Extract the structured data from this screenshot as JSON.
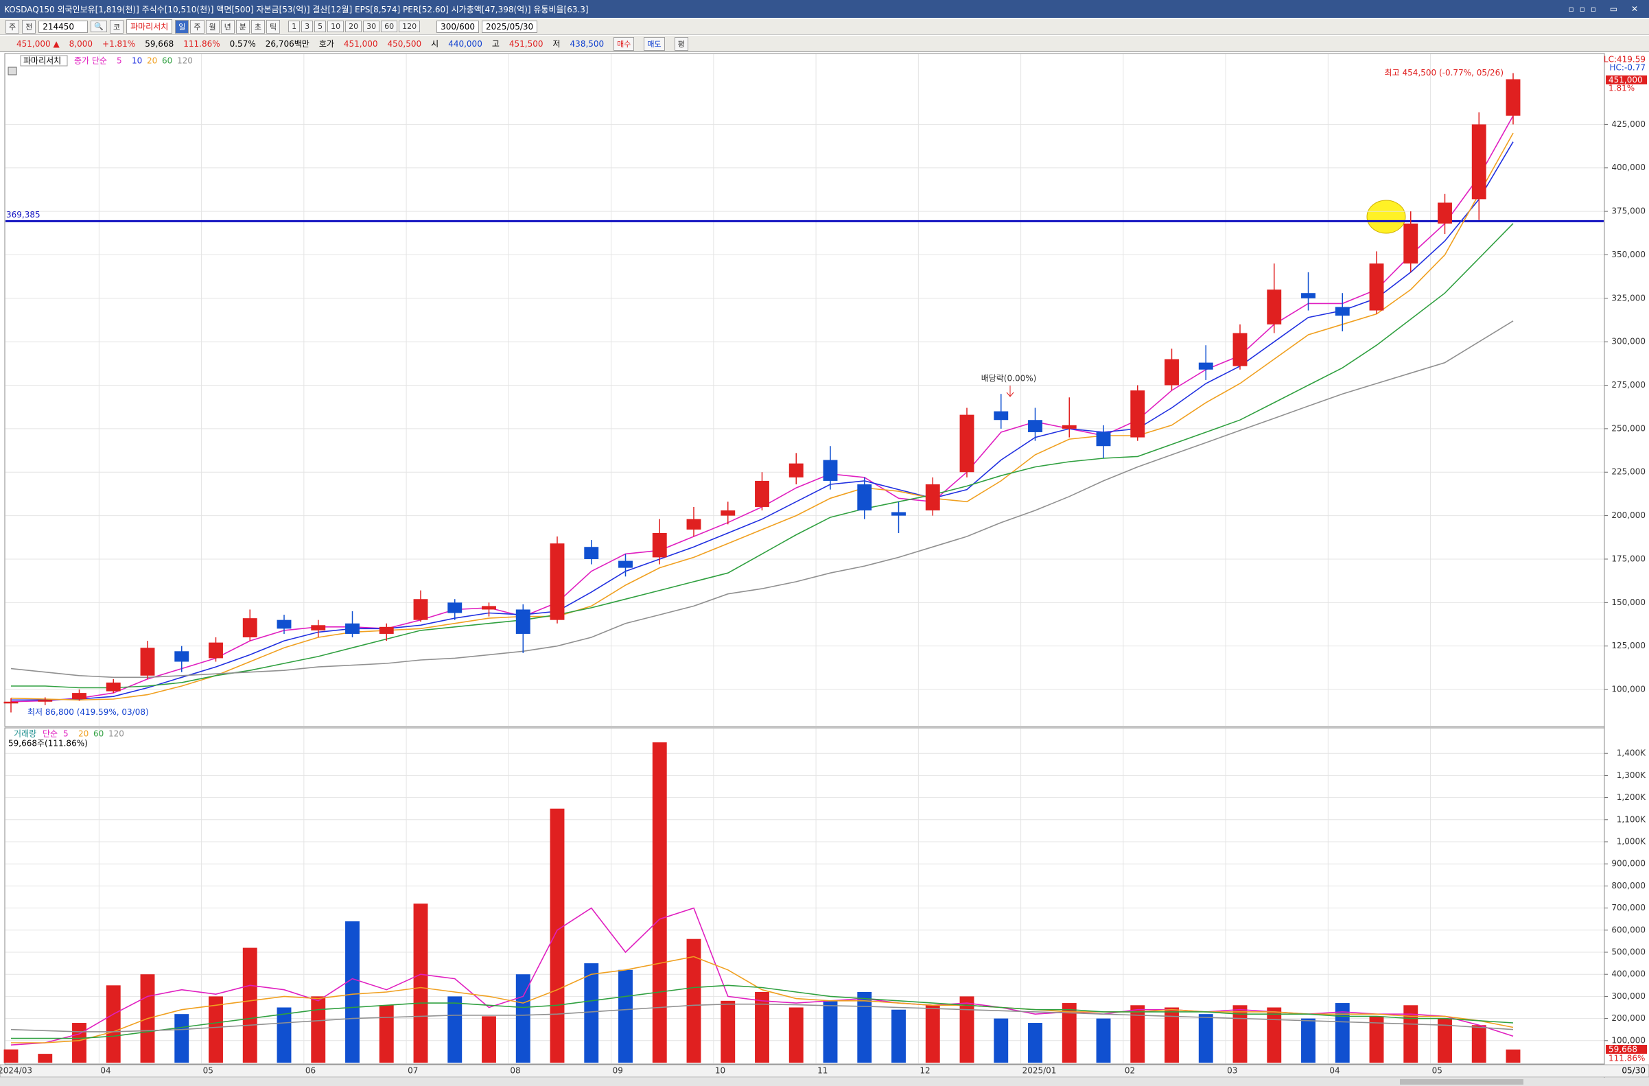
{
  "header": {
    "title": "KOSDAQ150 외국인보유[1,819(천)] 주식수[10,510(천)] 액면[500] 자본금[53(억)] 결산[12월] EPS[8,574] PER[52.60] 시가총액[47,398(억)] 유통비율[63.3]"
  },
  "toolbar": {
    "kind": "주",
    "scope": "전",
    "code": "214450",
    "market": "코",
    "name": "파마리서치",
    "periods": [
      "일",
      "주",
      "월",
      "년",
      "분",
      "초",
      "틱"
    ],
    "intervals": [
      "1",
      "3",
      "5",
      "10",
      "20",
      "30",
      "60",
      "120"
    ],
    "count": "300/600",
    "date": "2025/05/30"
  },
  "quote": {
    "price": "451,000 ▲",
    "change": "8,000",
    "rate": "+1.81%",
    "volume": "59,668",
    "volume_ratio": "111.86%",
    "turnover": "0.57%",
    "amount": "26,706백만",
    "bid_label": "호가",
    "ask": "451,000",
    "bid": "450,500",
    "open_label": "시",
    "open": "440,000",
    "high_label": "고",
    "high": "451,500",
    "low_label": "저",
    "low": "438,500",
    "buy": "매수",
    "sell": "매도",
    "other": "평"
  },
  "chart_data": [
    {
      "type": "candlestick",
      "name": "파마리서치",
      "ma_label": "종가 단순",
      "grid": true,
      "up_color": "#e02020",
      "down_color": "#1050d0",
      "categories": [
        "2024/03",
        null,
        null,
        "04",
        null,
        null,
        "05",
        null,
        null,
        "06",
        null,
        null,
        "07",
        null,
        null,
        "08",
        null,
        null,
        "09",
        null,
        null,
        "10",
        null,
        null,
        "11",
        null,
        null,
        "12",
        null,
        null,
        "2025/01",
        null,
        null,
        "02",
        null,
        null,
        "03",
        null,
        null,
        "04",
        null,
        null,
        "05",
        null,
        null
      ],
      "open": [
        92000,
        93000,
        94500,
        99000,
        108000,
        122000,
        118000,
        130000,
        140000,
        134000,
        138000,
        132000,
        140000,
        150000,
        146000,
        146000,
        140000,
        182000,
        174000,
        176000,
        192000,
        200000,
        205000,
        222000,
        232000,
        218000,
        202000,
        203000,
        225000,
        260000,
        255000,
        250000,
        248000,
        245000,
        275000,
        288000,
        286000,
        310000,
        328000,
        320000,
        318000,
        345000,
        368000,
        382000,
        430000
      ],
      "high": [
        95000,
        95500,
        100000,
        106000,
        128000,
        125000,
        130000,
        146000,
        143000,
        140000,
        145000,
        138000,
        157000,
        152000,
        150000,
        149000,
        188000,
        186000,
        178000,
        198000,
        205000,
        208000,
        225000,
        236000,
        240000,
        222000,
        208000,
        222000,
        262000,
        270000,
        262000,
        268000,
        252000,
        275000,
        296000,
        298000,
        310000,
        345000,
        340000,
        328000,
        352000,
        375000,
        385000,
        432000,
        454500
      ],
      "low": [
        86800,
        91000,
        93500,
        98000,
        106000,
        110000,
        116000,
        128000,
        132000,
        130000,
        130000,
        128000,
        139000,
        140000,
        142000,
        121000,
        138000,
        172000,
        165000,
        172000,
        188000,
        195000,
        203000,
        218000,
        215000,
        198000,
        190000,
        200000,
        222000,
        250000,
        243000,
        245000,
        233000,
        243000,
        272000,
        278000,
        284000,
        305000,
        318000,
        306000,
        316000,
        340000,
        362000,
        370000,
        425000
      ],
      "close": [
        93000,
        94000,
        98000,
        104000,
        124000,
        116000,
        127000,
        141000,
        135000,
        137000,
        132000,
        136000,
        152000,
        144000,
        148000,
        132000,
        184000,
        175000,
        170000,
        190000,
        198000,
        203000,
        220000,
        230000,
        220000,
        203000,
        200000,
        218000,
        258000,
        255000,
        248000,
        252000,
        240000,
        272000,
        290000,
        284000,
        305000,
        330000,
        325000,
        315000,
        345000,
        368000,
        380000,
        425000,
        451000
      ],
      "series": [
        {
          "name": "5",
          "color": "#e020c0",
          "values": [
            93000,
            93500,
            95000,
            98000,
            106000,
            112000,
            118000,
            128000,
            134000,
            136000,
            136000,
            135000,
            140000,
            146000,
            147000,
            142000,
            150000,
            168000,
            178000,
            180000,
            188000,
            196000,
            205000,
            216000,
            224000,
            222000,
            210000,
            208000,
            225000,
            248000,
            254000,
            250000,
            246000,
            255000,
            272000,
            284000,
            292000,
            310000,
            322000,
            322000,
            330000,
            350000,
            368000,
            395000,
            430000
          ]
        },
        {
          "name": "10",
          "color": "#2030e0",
          "values": [
            94000,
            94000,
            94500,
            96000,
            101000,
            107000,
            113000,
            120000,
            128000,
            133000,
            135000,
            135000,
            137000,
            141000,
            144000,
            143000,
            145000,
            156000,
            168000,
            175000,
            182000,
            190000,
            198000,
            208000,
            218000,
            220000,
            215000,
            210000,
            215000,
            232000,
            245000,
            250000,
            248000,
            250000,
            262000,
            276000,
            286000,
            300000,
            314000,
            318000,
            325000,
            340000,
            358000,
            382000,
            415000
          ]
        },
        {
          "name": "20",
          "color": "#f0a020",
          "values": [
            95000,
            94500,
            94000,
            94500,
            97000,
            102000,
            108000,
            116000,
            124000,
            130000,
            133000,
            134000,
            135000,
            138000,
            141000,
            142000,
            142000,
            148000,
            160000,
            170000,
            176000,
            184000,
            192000,
            200000,
            210000,
            216000,
            214000,
            210000,
            208000,
            220000,
            235000,
            244000,
            246000,
            246000,
            252000,
            265000,
            276000,
            290000,
            304000,
            310000,
            316000,
            330000,
            350000,
            385000,
            420000
          ]
        },
        {
          "name": "60",
          "color": "#30a040",
          "values": [
            102000,
            102000,
            101000,
            101000,
            102000,
            104000,
            108000,
            111000,
            115000,
            119000,
            124000,
            129000,
            134000,
            136000,
            138000,
            140000,
            143000,
            147000,
            152000,
            157000,
            162000,
            167000,
            178000,
            189000,
            199000,
            204000,
            208000,
            212000,
            217000,
            223000,
            228000,
            231000,
            233000,
            234000,
            241000,
            248000,
            255000,
            265000,
            275000,
            285000,
            298000,
            313000,
            328000,
            348000,
            368000
          ]
        },
        {
          "name": "120",
          "color": "#909090",
          "values": [
            112000,
            110000,
            108000,
            107000,
            107000,
            108000,
            109000,
            110000,
            111000,
            113000,
            114000,
            115000,
            117000,
            118000,
            120000,
            122000,
            125000,
            130000,
            138000,
            143000,
            148000,
            155000,
            158000,
            162000,
            167000,
            171000,
            176000,
            182000,
            188000,
            196000,
            203000,
            211000,
            220000,
            228000,
            235000,
            242000,
            249000,
            256000,
            263000,
            270000,
            276000,
            282000,
            288000,
            300000,
            312000
          ]
        }
      ],
      "hline": {
        "value": 369385,
        "label": "369,385"
      },
      "high_note": "최고 454,500 (-0.77%, 05/26)",
      "low_note": "최저 86,800 (419.59%, 03/08)",
      "dividend_note": "배당락(0.00%)",
      "side_labels": [
        "LC:419.59",
        "HC:-0.77"
      ],
      "last_label": "451,000",
      "last_rate": "1.81%",
      "ylim": [
        79500,
        465000
      ],
      "yticks": [
        {
          "value": 100000,
          "label": "100,000"
        },
        {
          "value": 125000,
          "label": "125,000"
        },
        {
          "value": 150000,
          "label": "150,000"
        },
        {
          "value": 175000,
          "label": "175,000"
        },
        {
          "value": 200000,
          "label": "200,000"
        },
        {
          "value": 225000,
          "label": "225,000"
        },
        {
          "value": 250000,
          "label": "250,000"
        },
        {
          "value": 275000,
          "label": "275,000"
        },
        {
          "value": 300000,
          "label": "300,000"
        },
        {
          "value": 325000,
          "label": "325,000"
        },
        {
          "value": 350000,
          "label": "350,000"
        },
        {
          "value": 375000,
          "label": "375,000"
        },
        {
          "value": 400000,
          "label": "400,000"
        },
        {
          "value": 425000,
          "label": "425,000"
        }
      ]
    },
    {
      "type": "bar",
      "title": "거래량",
      "ma_label": "단순",
      "volume_label": "59,668주(111.86%)",
      "grid": true,
      "values": [
        60000,
        40000,
        180000,
        350000,
        400000,
        220000,
        300000,
        520000,
        250000,
        300000,
        640000,
        260000,
        720000,
        300000,
        210000,
        400000,
        1150000,
        450000,
        420000,
        1450000,
        560000,
        280000,
        320000,
        250000,
        280000,
        320000,
        240000,
        260000,
        300000,
        200000,
        180000,
        270000,
        200000,
        260000,
        250000,
        220000,
        260000,
        250000,
        200000,
        270000,
        210000,
        260000,
        200000,
        170000,
        59668
      ],
      "series": [
        {
          "name": "5",
          "color": "#e020c0",
          "values": [
            80000,
            90000,
            130000,
            220000,
            300000,
            330000,
            310000,
            350000,
            330000,
            280000,
            380000,
            330000,
            400000,
            380000,
            250000,
            300000,
            600000,
            700000,
            500000,
            650000,
            700000,
            300000,
            280000,
            270000,
            280000,
            290000,
            270000,
            260000,
            270000,
            250000,
            220000,
            230000,
            220000,
            240000,
            240000,
            230000,
            240000,
            230000,
            220000,
            230000,
            220000,
            220000,
            210000,
            170000,
            120000
          ]
        },
        {
          "name": "20",
          "color": "#f0a020",
          "values": [
            90000,
            90000,
            100000,
            140000,
            200000,
            240000,
            260000,
            280000,
            300000,
            290000,
            310000,
            320000,
            340000,
            320000,
            300000,
            270000,
            330000,
            400000,
            420000,
            450000,
            480000,
            420000,
            330000,
            290000,
            280000,
            280000,
            270000,
            260000,
            260000,
            250000,
            240000,
            230000,
            230000,
            230000,
            240000,
            230000,
            230000,
            230000,
            220000,
            220000,
            220000,
            210000,
            210000,
            190000,
            160000
          ]
        },
        {
          "name": "60",
          "color": "#30a040",
          "values": [
            110000,
            110000,
            110000,
            120000,
            140000,
            160000,
            180000,
            200000,
            220000,
            240000,
            250000,
            260000,
            270000,
            270000,
            260000,
            250000,
            260000,
            280000,
            300000,
            320000,
            340000,
            350000,
            340000,
            320000,
            300000,
            290000,
            280000,
            270000,
            260000,
            250000,
            240000,
            240000,
            230000,
            230000,
            230000,
            230000,
            220000,
            220000,
            220000,
            210000,
            210000,
            200000,
            200000,
            190000,
            180000
          ]
        },
        {
          "name": "120",
          "color": "#909090",
          "values": [
            150000,
            145000,
            140000,
            140000,
            145000,
            150000,
            160000,
            170000,
            180000,
            190000,
            200000,
            205000,
            210000,
            215000,
            215000,
            215000,
            220000,
            230000,
            240000,
            250000,
            260000,
            265000,
            265000,
            262000,
            258000,
            255000,
            250000,
            245000,
            240000,
            235000,
            230000,
            225000,
            220000,
            215000,
            210000,
            205000,
            200000,
            195000,
            190000,
            185000,
            180000,
            175000,
            170000,
            160000,
            150000
          ]
        }
      ],
      "last_label": "59,668",
      "last_rate": "111.86%",
      "x_end_label": "05/30",
      "ylim": [
        0,
        1500000
      ],
      "yticks": [
        {
          "value": 100000,
          "label": "100,000"
        },
        {
          "value": 200000,
          "label": "200,000"
        },
        {
          "value": 300000,
          "label": "300,000"
        },
        {
          "value": 400000,
          "label": "400,000"
        },
        {
          "value": 500000,
          "label": "500,000"
        },
        {
          "value": 600000,
          "label": "600,000"
        },
        {
          "value": 700000,
          "label": "700,000"
        },
        {
          "value": 800000,
          "label": "800,000"
        },
        {
          "value": 900000,
          "label": "900,000"
        },
        {
          "value": 1000000,
          "label": "1,000K"
        },
        {
          "value": 1100000,
          "label": "1,100K"
        },
        {
          "value": 1200000,
          "label": "1,200K"
        },
        {
          "value": 1300000,
          "label": "1,300K"
        },
        {
          "value": 1400000,
          "label": "1,400K"
        }
      ]
    }
  ]
}
